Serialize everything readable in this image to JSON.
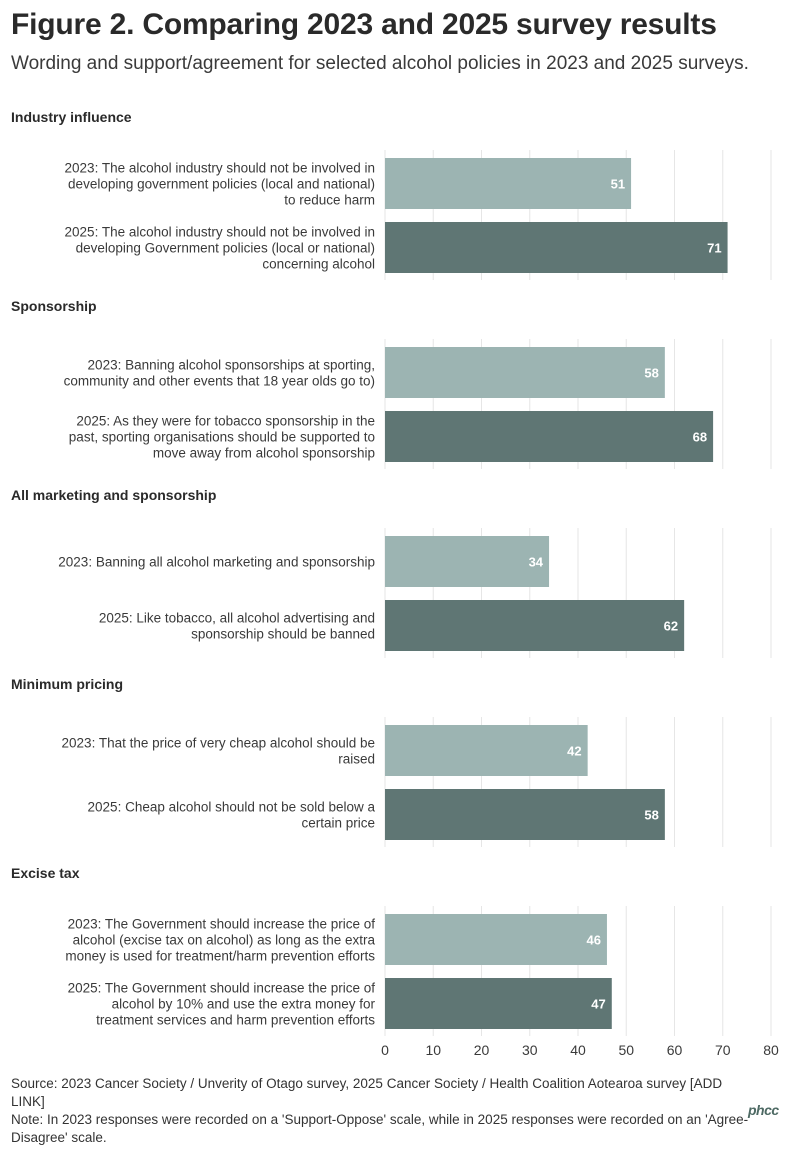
{
  "title": "Figure 2. Comparing 2023 and 2025 survey results",
  "subtitle": "Wording and support/agreement for selected alcohol policies in 2023 and 2025 surveys.",
  "source": "Source: 2023 Cancer Society / Unverity of Otago survey, 2025 Cancer Society / Health Coalition Aotearoa survey [ADD LINK]",
  "note": "Note: In 2023 responses were recorded on a 'Support-Oppose' scale, while in 2025 responses were recorded on an 'Agree-Disagree' scale.",
  "logo": "phcc",
  "colors": {
    "y2023": "#9cb4b2",
    "y2025": "#5f7674",
    "grid": "#e6e6e6"
  },
  "chart_data": {
    "type": "bar",
    "orientation": "horizontal",
    "xlim": [
      0,
      80
    ],
    "xticks": [
      0,
      10,
      20,
      30,
      40,
      50,
      60,
      70,
      80
    ],
    "panels": [
      {
        "title": "Industry influence",
        "bars": [
          {
            "year": "2023",
            "lines": [
              "2023: The alcohol industry should not be involved in",
              "developing government policies (local and national)",
              "to reduce harm"
            ],
            "value": 51
          },
          {
            "year": "2025",
            "lines": [
              "2025: The alcohol industry should not be involved in",
              "developing Government policies (local or national)",
              "concerning alcohol"
            ],
            "value": 71
          }
        ]
      },
      {
        "title": "Sponsorship",
        "bars": [
          {
            "year": "2023",
            "lines": [
              "2023: Banning alcohol sponsorships at sporting,",
              "community and other events that 18 year olds go to)"
            ],
            "value": 58
          },
          {
            "year": "2025",
            "lines": [
              "2025: As they were for tobacco sponsorship in the",
              "past, sporting organisations should be supported to",
              "move away from alcohol sponsorship"
            ],
            "value": 68
          }
        ]
      },
      {
        "title": "All marketing and sponsorship",
        "bars": [
          {
            "year": "2023",
            "lines": [
              "2023: Banning all alcohol marketing and sponsorship"
            ],
            "value": 34
          },
          {
            "year": "2025",
            "lines": [
              "2025: Like tobacco, all alcohol advertising and",
              "sponsorship should be banned"
            ],
            "value": 62
          }
        ]
      },
      {
        "title": "Minimum pricing",
        "bars": [
          {
            "year": "2023",
            "lines": [
              "2023: That the price of very cheap alcohol should be",
              "raised"
            ],
            "value": 42
          },
          {
            "year": "2025",
            "lines": [
              "2025: Cheap alcohol should not be sold below a",
              "certain price"
            ],
            "value": 58
          }
        ]
      },
      {
        "title": "Excise tax",
        "bars": [
          {
            "year": "2023",
            "lines": [
              "2023: The Government should increase the price of",
              "alcohol (excise tax on alcohol) as long as the extra",
              "money is used for treatment/harm prevention efforts"
            ],
            "value": 46
          },
          {
            "year": "2025",
            "lines": [
              "2025: The Government should increase the price of",
              "alcohol by 10% and use the extra money for",
              "treatment services and harm prevention efforts"
            ],
            "value": 47
          }
        ]
      }
    ]
  }
}
